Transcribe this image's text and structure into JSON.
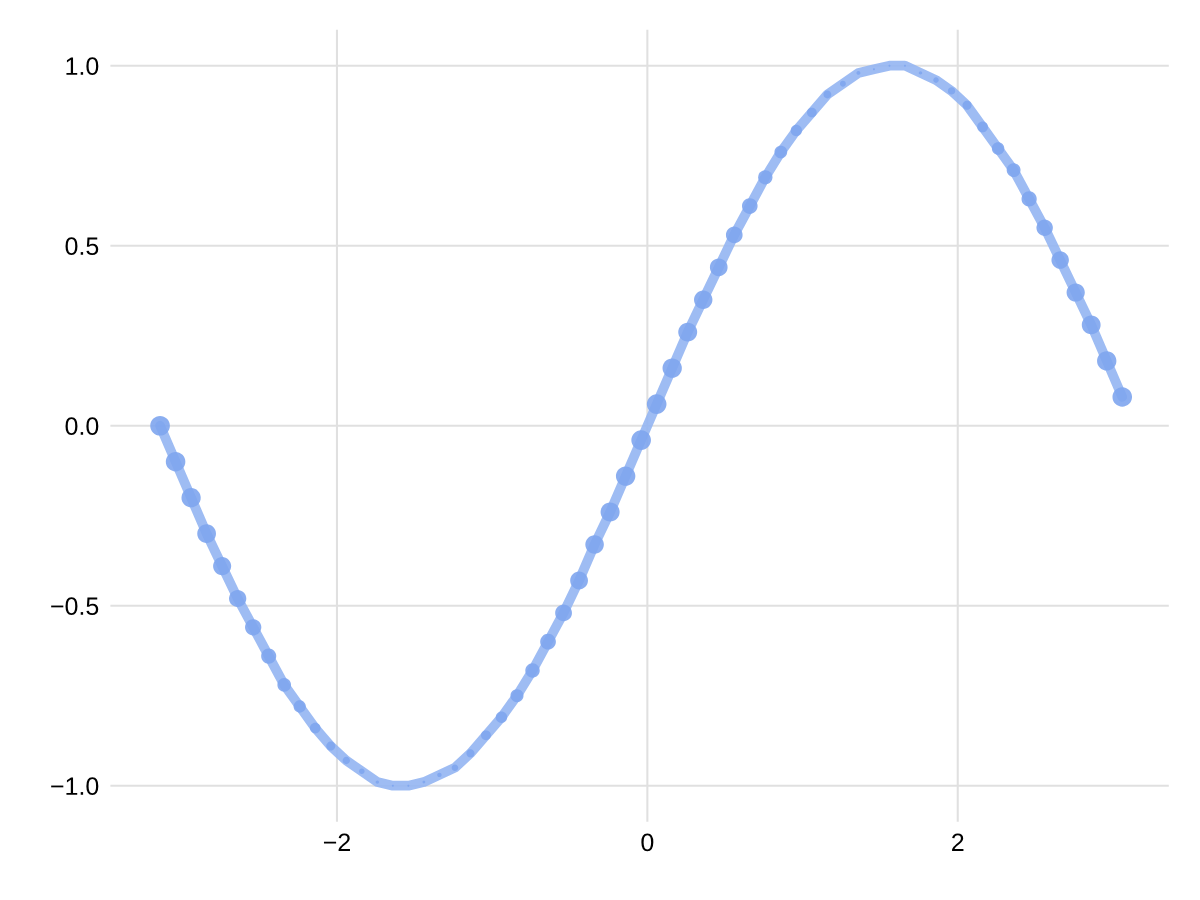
{
  "chart_data": {
    "type": "line",
    "x": [
      -3.14,
      -3.04,
      -2.94,
      -2.84,
      -2.74,
      -2.64,
      -2.54,
      -2.44,
      -2.34,
      -2.24,
      -2.14,
      -2.04,
      -1.94,
      -1.84,
      -1.74,
      -1.64,
      -1.54,
      -1.44,
      -1.34,
      -1.24,
      -1.14,
      -1.04,
      -0.94,
      -0.84,
      -0.74,
      -0.64,
      -0.54,
      -0.44,
      -0.34,
      -0.24,
      -0.14,
      -0.04,
      0.06,
      0.16,
      0.26,
      0.36,
      0.46,
      0.56,
      0.66,
      0.76,
      0.86,
      0.96,
      1.06,
      1.16,
      1.26,
      1.36,
      1.46,
      1.56,
      1.66,
      1.76,
      1.86,
      1.96,
      2.06,
      2.16,
      2.26,
      2.36,
      2.46,
      2.56,
      2.66,
      2.76,
      2.86,
      2.96,
      3.06
    ],
    "series": [
      {
        "color": "#94b5f2",
        "values": [
          0.0,
          -0.1,
          -0.2,
          -0.3,
          -0.39,
          -0.48,
          -0.56,
          -0.64,
          -0.72,
          -0.78,
          -0.84,
          -0.89,
          -0.93,
          -0.96,
          -0.99,
          -1.0,
          -1.0,
          -0.99,
          -0.97,
          -0.95,
          -0.91,
          -0.86,
          -0.81,
          -0.75,
          -0.68,
          -0.6,
          -0.52,
          -0.43,
          -0.33,
          -0.24,
          -0.14,
          -0.04,
          0.06,
          0.16,
          0.26,
          0.35,
          0.44,
          0.53,
          0.61,
          0.69,
          0.76,
          0.82,
          0.87,
          0.92,
          0.95,
          0.98,
          0.99,
          1.0,
          1.0,
          0.98,
          0.96,
          0.93,
          0.89,
          0.83,
          0.77,
          0.71,
          0.63,
          0.55,
          0.46,
          0.37,
          0.28,
          0.18,
          0.08
        ]
      },
      {
        "type": "bubble",
        "color": "#7ea5ee",
        "values": [
          0.0,
          -0.1,
          -0.2,
          -0.3,
          -0.39,
          -0.48,
          -0.56,
          -0.64,
          -0.72,
          -0.78,
          -0.84,
          -0.89,
          -0.93,
          -0.96,
          -0.99,
          -1.0,
          -1.0,
          -0.99,
          -0.97,
          -0.95,
          -0.91,
          -0.86,
          -0.81,
          -0.75,
          -0.68,
          -0.6,
          -0.52,
          -0.43,
          -0.33,
          -0.24,
          -0.14,
          -0.04,
          0.06,
          0.16,
          0.26,
          0.35,
          0.44,
          0.53,
          0.61,
          0.69,
          0.76,
          0.82,
          0.87,
          0.92,
          0.95,
          0.98,
          0.99,
          1.0,
          1.0,
          0.98,
          0.96,
          0.93,
          0.89,
          0.83,
          0.77,
          0.71,
          0.63,
          0.55,
          0.46,
          0.37,
          0.28,
          0.18,
          0.08
        ],
        "sizes": [
          1.0,
          0.99,
          0.96,
          0.91,
          0.85,
          0.77,
          0.69,
          0.59,
          0.48,
          0.39,
          0.29,
          0.21,
          0.14,
          0.08,
          0.03,
          0.01,
          0.01,
          0.02,
          0.05,
          0.11,
          0.17,
          0.25,
          0.34,
          0.44,
          0.54,
          0.64,
          0.73,
          0.82,
          0.89,
          0.94,
          0.98,
          1.0,
          1.0,
          0.97,
          0.93,
          0.88,
          0.81,
          0.72,
          0.63,
          0.53,
          0.42,
          0.33,
          0.24,
          0.16,
          0.09,
          0.04,
          0.01,
          0.01,
          0.01,
          0.03,
          0.08,
          0.14,
          0.21,
          0.3,
          0.4,
          0.5,
          0.6,
          0.7,
          0.79,
          0.86,
          0.92,
          0.97,
          0.99
        ]
      }
    ],
    "xlim": [
      -3.46,
      3.36
    ],
    "ylim": [
      -1.1,
      1.1
    ],
    "xticks": [
      {
        "value": -2,
        "label": "−2"
      },
      0,
      2
    ],
    "yticks": [
      {
        "value": -1.0,
        "label": "−1.0"
      },
      {
        "value": -0.5,
        "label": "−0.5"
      },
      {
        "value": 0.0,
        "label": "0.0"
      },
      {
        "value": 0.5,
        "label": "0.5"
      },
      {
        "value": 1.0,
        "label": "1.0"
      }
    ],
    "grid": true,
    "legend": false
  }
}
